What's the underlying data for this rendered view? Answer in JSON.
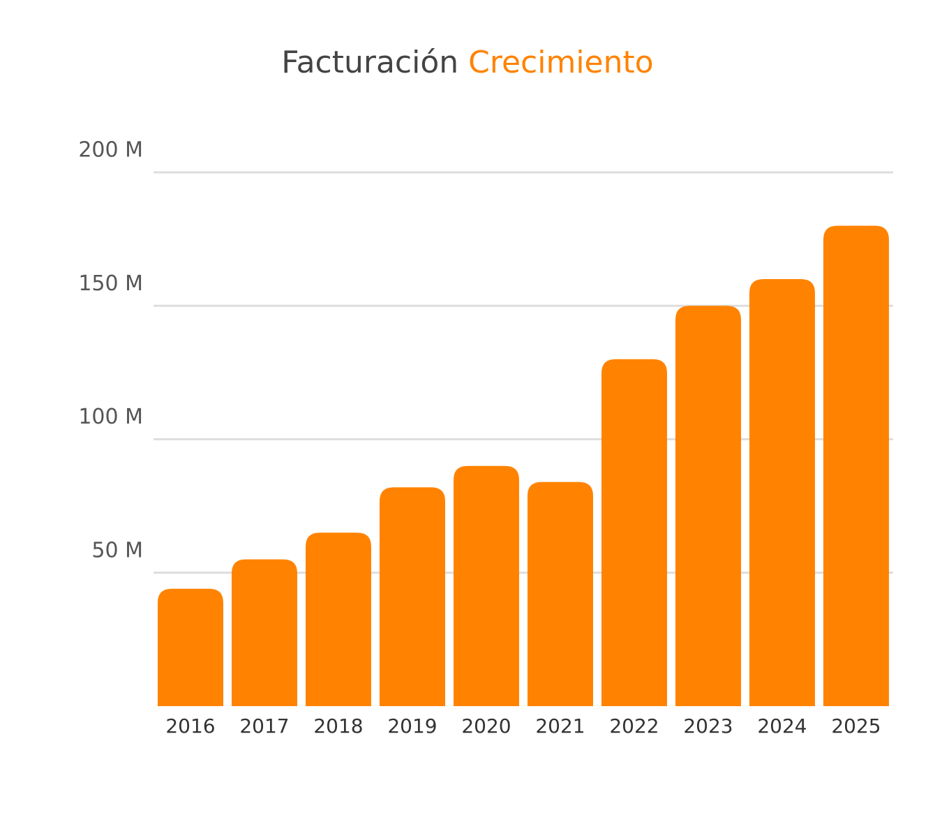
{
  "chart_data": {
    "type": "bar",
    "title": [
      "Facturación",
      "Crecimiento"
    ],
    "title_colors": [
      "#444444",
      "#ff8300"
    ],
    "categories": [
      "2016",
      "2017",
      "2018",
      "2019",
      "2020",
      "2021",
      "2022",
      "2023",
      "2024",
      "2025"
    ],
    "values": [
      44,
      55,
      65,
      82,
      90,
      84,
      130,
      150,
      160,
      180
    ],
    "color": "#ff8300",
    "ylim": [
      0,
      200
    ],
    "yticks": [
      {
        "value": 50,
        "label": "50 M"
      },
      {
        "value": 100,
        "label": "100 M"
      },
      {
        "value": 150,
        "label": "150 M"
      },
      {
        "value": 200,
        "label": "200 M"
      }
    ],
    "grid": true
  }
}
